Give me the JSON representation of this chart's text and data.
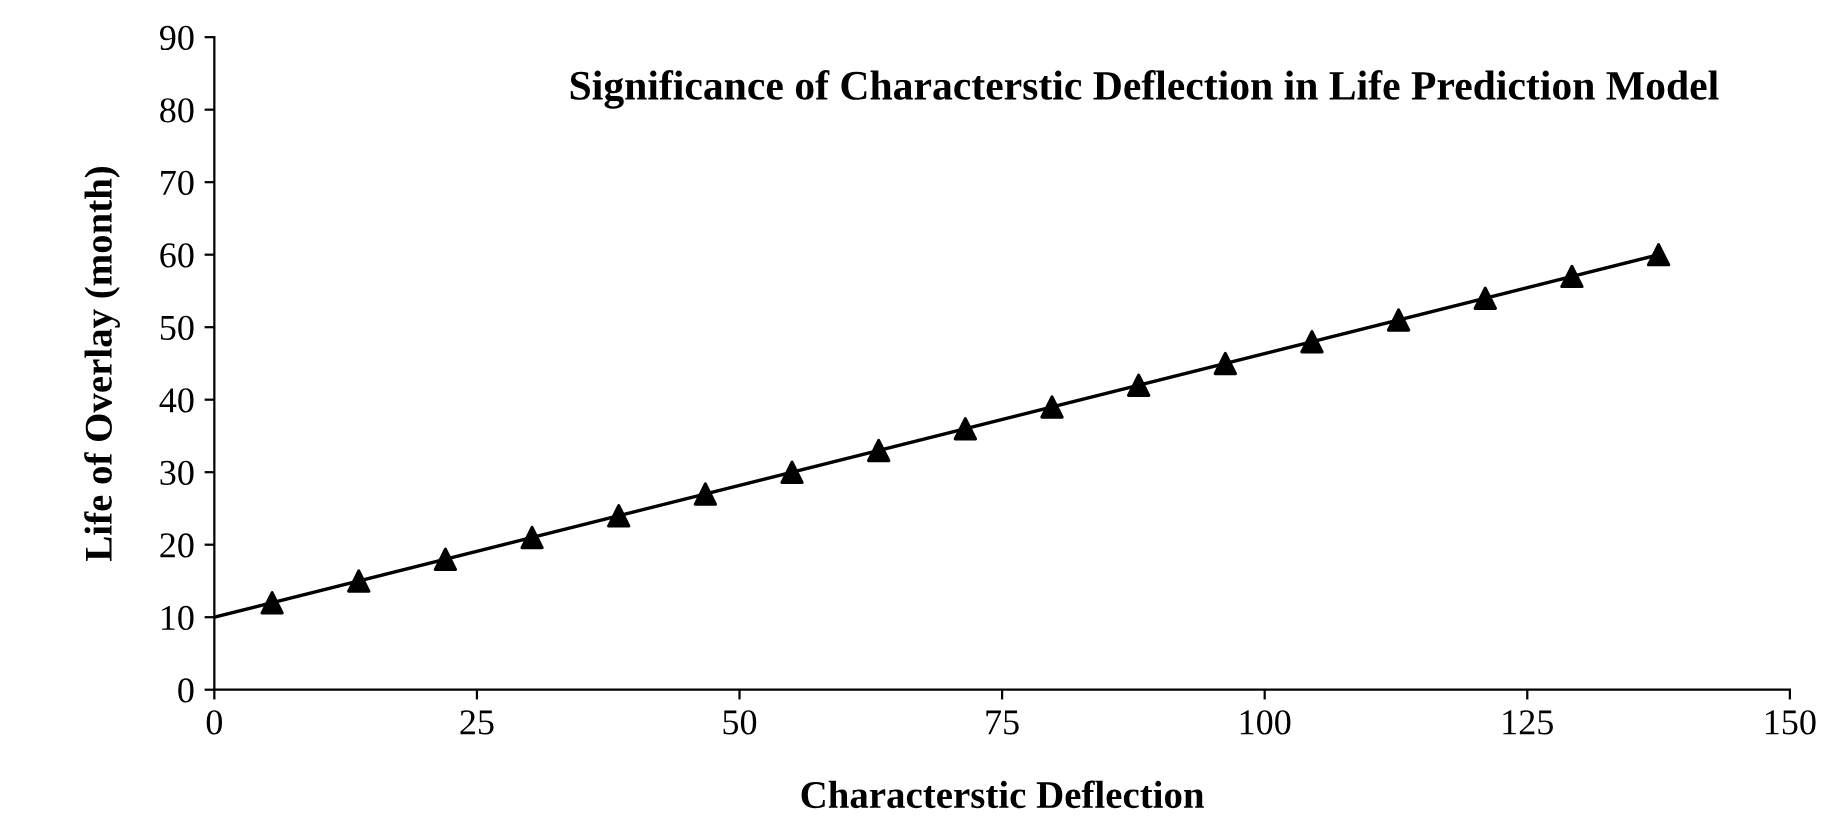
{
  "chart_data": {
    "type": "scatter",
    "title": "Significance of Characterstic Deflection in Life Prediction Model",
    "xlabel": "Characterstic Deflection",
    "ylabel": "Life of Overlay (month)",
    "xlim": [
      0,
      150
    ],
    "xticks": [
      0,
      25,
      50,
      75,
      100,
      125,
      150
    ],
    "ylim": [
      0,
      90
    ],
    "yticks": [
      0,
      10,
      20,
      30,
      40,
      50,
      60,
      70,
      80,
      90
    ],
    "grid": false,
    "series": [
      {
        "color": "#000000",
        "marker": "triangle",
        "x": [
          5.5,
          13.75,
          22,
          30.25,
          38.5,
          46.75,
          55,
          63.25,
          71.5,
          79.75,
          88,
          96.25,
          104.5,
          112.75,
          121,
          129.25,
          137.5
        ],
        "values": [
          12,
          15,
          18,
          21,
          24,
          27,
          30,
          33,
          36,
          39,
          42,
          45,
          48,
          51,
          54,
          57,
          60
        ]
      },
      {
        "type": "line",
        "color": "#000000",
        "marker": "none",
        "line_style": "solid",
        "x": [
          0,
          137.5
        ],
        "values": [
          10,
          60
        ]
      }
    ]
  }
}
